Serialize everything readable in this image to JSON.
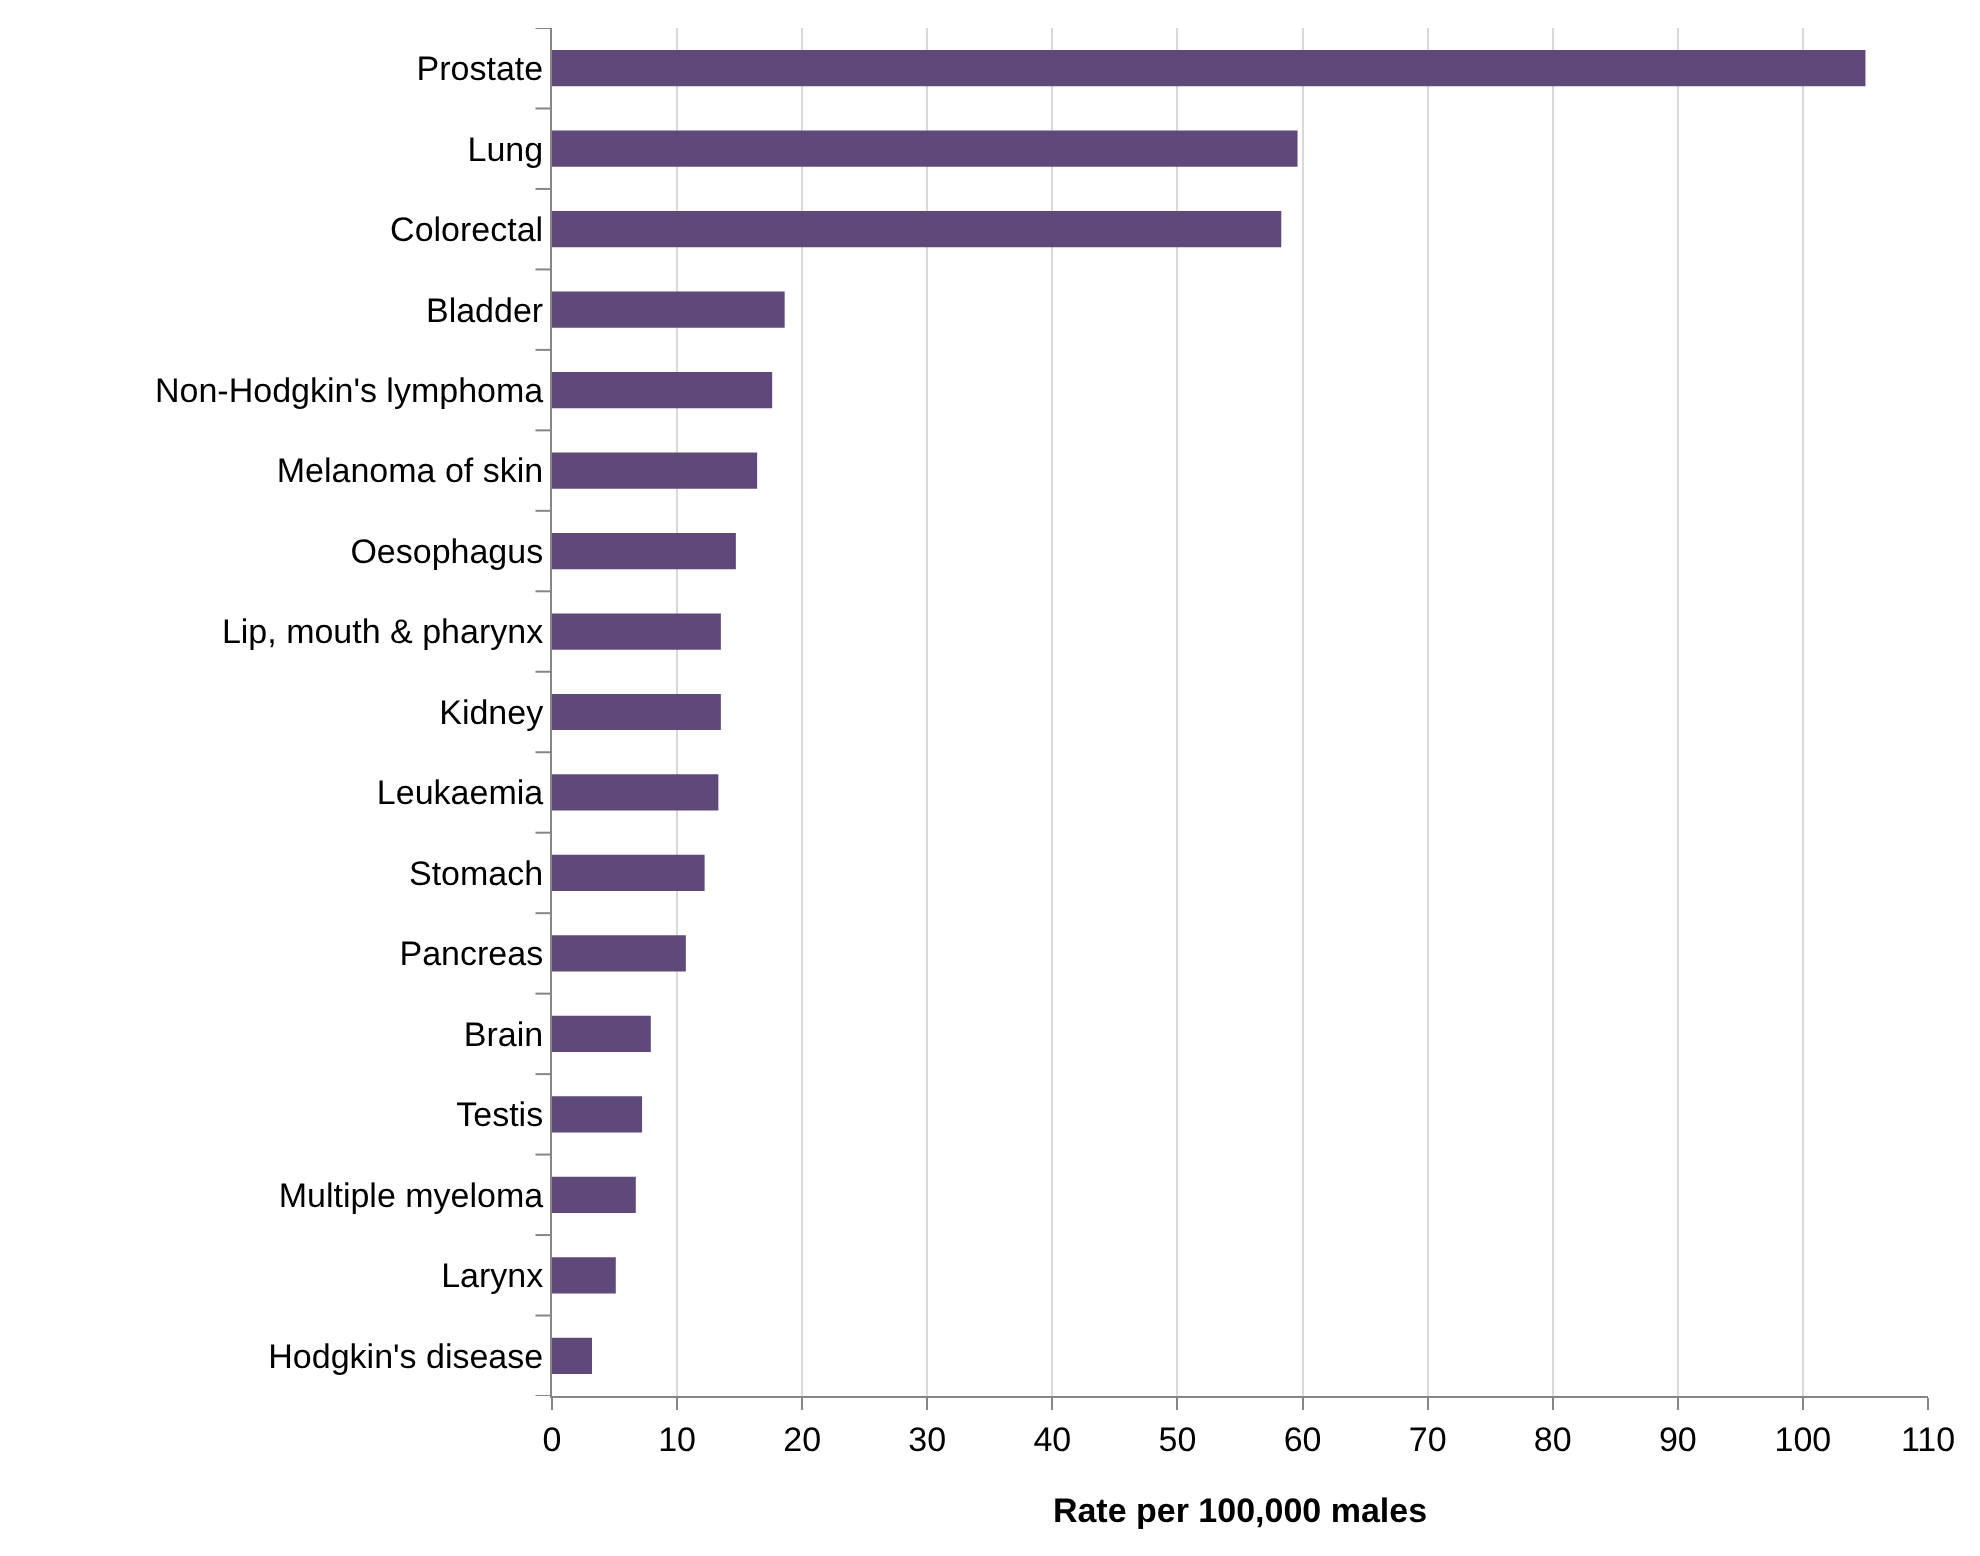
{
  "chart_data": {
    "type": "bar",
    "orientation": "horizontal",
    "xlabel": "Rate per 100,000 males",
    "categories": [
      "Prostate",
      "Lung",
      "Colorectal",
      "Bladder",
      "Non-Hodgkin's lymphoma",
      "Melanoma of skin",
      "Oesophagus",
      "Lip, mouth & pharynx",
      "Kidney",
      "Leukaemia",
      "Stomach",
      "Pancreas",
      "Brain",
      "Testis",
      "Multiple myeloma",
      "Larynx",
      "Hodgkin's disease"
    ],
    "values": [
      105,
      59.6,
      58.3,
      18.6,
      17.6,
      16.4,
      14.7,
      13.5,
      13.5,
      13.3,
      12.2,
      10.7,
      7.9,
      7.2,
      6.7,
      5.1,
      3.2
    ],
    "color": "#5f497a",
    "xlim": [
      0,
      110
    ],
    "xticks": [
      0,
      10,
      20,
      30,
      40,
      50,
      60,
      70,
      80,
      90,
      100,
      110
    ],
    "grid": "x"
  }
}
